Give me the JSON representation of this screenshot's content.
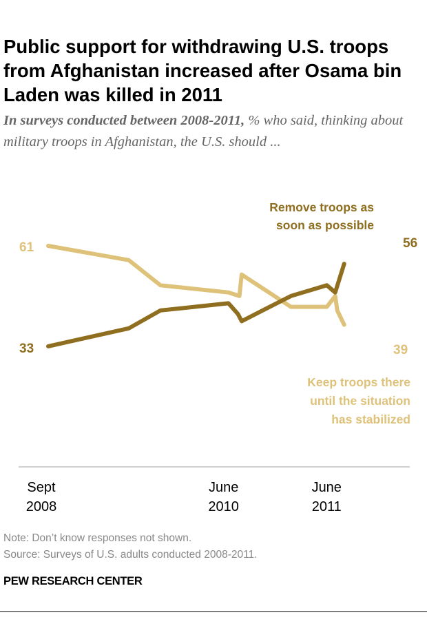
{
  "title": "Public support for withdrawing U.S. troops from Afghanistan increased after Osama bin Laden was killed in 2011",
  "subtitle_bold": "In surveys conducted between 2008-2011,",
  "subtitle_rest": " % who said, thinking about military troops in Afghanistan, the U.S. should ...",
  "note": "Note: Don’t know responses not shown.",
  "source": "Source: Surveys of U.S. adults conducted 2008-2011.",
  "brand": "PEW RESEARCH CENTER",
  "colors": {
    "remove": "#8f6e1f",
    "keep": "#dfc27a",
    "axis": "#d0d0d0"
  },
  "chart_data": {
    "type": "line",
    "title": "",
    "xlabel": "",
    "ylabel": "",
    "x_ticks": [
      {
        "date": "2008-09-15",
        "line1": "Sept",
        "line2": "2008"
      },
      {
        "date": "2010-06-15",
        "line1": "June",
        "line2": "2010"
      },
      {
        "date": "2011-06-15",
        "line1": "June",
        "line2": "2011"
      }
    ],
    "grid": false,
    "series": [
      {
        "name": "Remove troops as soon as possible",
        "label_lines": [
          "Remove troops as",
          "soon as possible"
        ],
        "color": "#8f6e1f",
        "dates": [
          "2008-09-15",
          "2009-06-22",
          "2009-10-10",
          "2010-06-03",
          "2010-07-06",
          "2010-07-19",
          "2011-01-06",
          "2011-05-11",
          "2011-06-09",
          "2011-07-10"
        ],
        "values": [
          33,
          38,
          43,
          45,
          42,
          40,
          47,
          50,
          48,
          56
        ],
        "start_label": "33",
        "end_label": "56"
      },
      {
        "name": "Keep troops there until the situation has stabilized",
        "label_lines": [
          "Keep troops there",
          "until the situation",
          "has stabilized"
        ],
        "color": "#dfc27a",
        "dates": [
          "2008-09-15",
          "2009-06-22",
          "2009-10-10",
          "2010-06-03",
          "2010-07-11",
          "2010-07-19",
          "2011-01-06",
          "2011-05-11",
          "2011-06-09",
          "2011-06-16",
          "2011-07-10"
        ],
        "values": [
          61,
          57,
          50,
          48,
          47,
          53,
          44,
          44,
          47,
          43,
          39
        ],
        "start_label": "61",
        "end_label": "39"
      }
    ]
  }
}
